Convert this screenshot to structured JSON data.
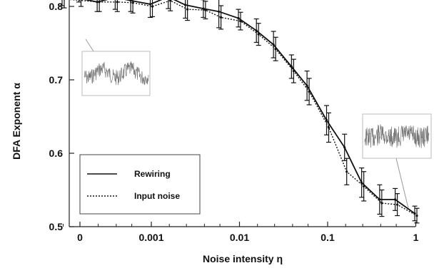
{
  "chart_data": {
    "type": "line",
    "xlabel": "Noise intensity η",
    "ylabel": "DFA Exponent α",
    "x_scale": "log (with 0 at left)",
    "x_ticks": [
      "0",
      "0.001",
      "0.01",
      "0.1",
      "1"
    ],
    "y_ticks": [
      "0.5",
      "0.6",
      "0.7",
      "0.8"
    ],
    "ylim": [
      0.5,
      0.84
    ],
    "x": [
      0,
      0.0001,
      0.00025,
      0.0004,
      0.0006,
      0.001,
      0.0016,
      0.0025,
      0.004,
      0.006,
      0.01,
      0.016,
      0.025,
      0.04,
      0.06,
      0.1,
      0.16,
      0.25,
      0.4,
      0.6,
      1
    ],
    "series": [
      {
        "name": "Rewiring",
        "style": "solid",
        "values": [
          0.818,
          0.816,
          0.806,
          0.812,
          0.808,
          0.803,
          0.813,
          0.802,
          0.797,
          0.793,
          0.784,
          0.767,
          0.748,
          0.718,
          0.692,
          0.645,
          0.608,
          0.56,
          0.537,
          0.537,
          0.518
        ],
        "errors": [
          0.012,
          0.015,
          0.013,
          0.016,
          0.015,
          0.018,
          0.016,
          0.018,
          0.012,
          0.022,
          0.012,
          0.016,
          0.018,
          0.016,
          0.02,
          0.02,
          0.018,
          0.02,
          0.02,
          0.015,
          0.01
        ]
      },
      {
        "name": "Input noise",
        "style": "dotted",
        "values": [
          0.812,
          0.81,
          0.806,
          0.806,
          0.805,
          0.8,
          0.808,
          0.796,
          0.795,
          0.785,
          0.78,
          0.762,
          0.742,
          0.712,
          0.684,
          0.635,
          0.575,
          0.555,
          0.532,
          0.53,
          0.515
        ],
        "errors": [
          0.012,
          0.012,
          0.013,
          0.013,
          0.014,
          0.014,
          0.014,
          0.015,
          0.012,
          0.016,
          0.012,
          0.015,
          0.016,
          0.016,
          0.018,
          0.02,
          0.018,
          0.02,
          0.018,
          0.015,
          0.01
        ]
      }
    ],
    "legend": {
      "placement": "lower-left",
      "entries": [
        "Rewiring",
        "Input noise"
      ]
    },
    "insets": [
      "noisy-trace-low-noise",
      "noisy-trace-high-noise"
    ],
    "grid": false,
    "colors": {
      "line": "#111111",
      "inset_trace": "#777777",
      "inset_border": "#bbbbbb"
    }
  }
}
